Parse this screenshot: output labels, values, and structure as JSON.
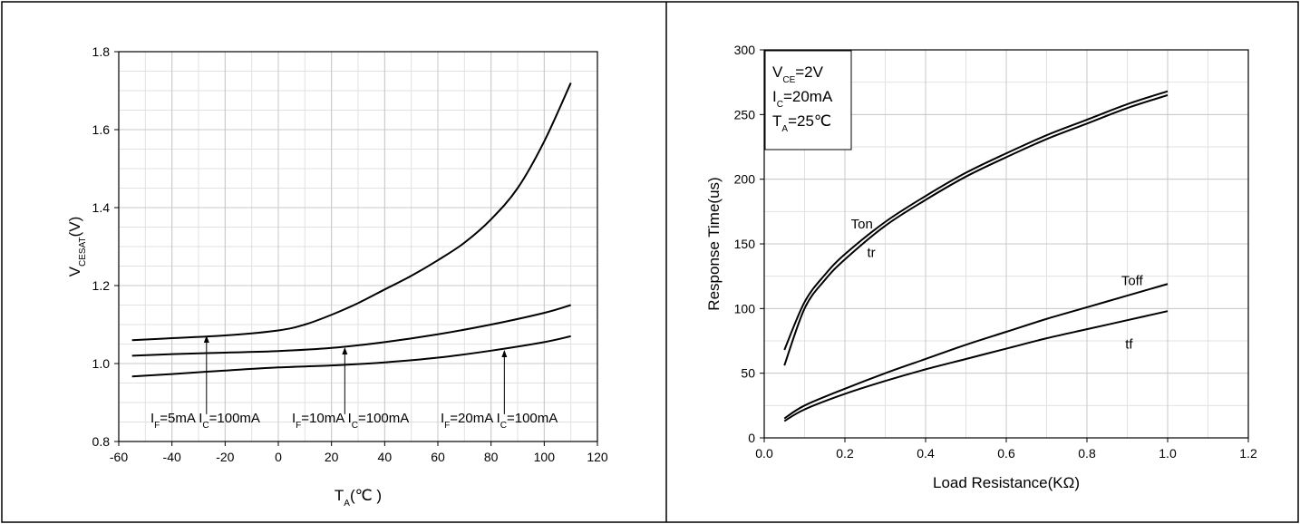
{
  "chart_data": [
    {
      "type": "line",
      "title": "",
      "xlabel": "T",
      "xlabel_sub": "A",
      "xlabel_unit": "(℃ )",
      "ylabel": "V",
      "ylabel_sub": "CESAT",
      "ylabel_unit": "(V)",
      "xlim": [
        -60,
        120
      ],
      "ylim": [
        0.8,
        1.8
      ],
      "xticks": [
        "-60",
        "-40",
        "-20",
        "0",
        "20",
        "40",
        "60",
        "80",
        "100",
        "120"
      ],
      "yticks": [
        "0.8",
        "1.0",
        "1.2",
        "1.4",
        "1.6",
        "1.8"
      ],
      "grid": true,
      "series": [
        {
          "x": [
            -55,
            -40,
            -20,
            0,
            10,
            20,
            30,
            40,
            50,
            60,
            70,
            80,
            90,
            100,
            110
          ],
          "y": [
            1.06,
            1.065,
            1.072,
            1.085,
            1.1,
            1.125,
            1.155,
            1.19,
            1.225,
            1.265,
            1.31,
            1.37,
            1.45,
            1.57,
            1.72
          ]
        },
        {
          "x": [
            -55,
            -40,
            -20,
            0,
            20,
            40,
            60,
            80,
            100,
            110
          ],
          "y": [
            1.02,
            1.024,
            1.028,
            1.032,
            1.04,
            1.055,
            1.075,
            1.1,
            1.13,
            1.15
          ]
        },
        {
          "x": [
            -55,
            -40,
            -20,
            0,
            20,
            40,
            60,
            80,
            100,
            110
          ],
          "y": [
            0.967,
            0.973,
            0.982,
            0.99,
            0.995,
            1.003,
            1.015,
            1.033,
            1.055,
            1.07
          ]
        }
      ],
      "annotations": [
        {
          "text": [
            "I",
            "F",
            "=5mA I",
            "C",
            "=100mA"
          ],
          "arrow_x": -27,
          "arrow_from_y": 0.87,
          "arrow_to_y": 1.072
        },
        {
          "text": [
            "I",
            "F",
            "=10mA I",
            "C",
            "=100mA"
          ],
          "arrow_x": 25,
          "arrow_from_y": 0.87,
          "arrow_to_y": 1.042
        },
        {
          "text": [
            "I",
            "F",
            "=20mA I",
            "C",
            "=100mA"
          ],
          "arrow_x": 85,
          "arrow_from_y": 0.87,
          "arrow_to_y": 1.035
        }
      ]
    },
    {
      "type": "line",
      "title": "",
      "xlabel": "Load Resistance(KΩ)",
      "ylabel": "Response Time(us)",
      "xlim": [
        0.0,
        1.2
      ],
      "ylim": [
        0,
        300
      ],
      "xticks": [
        "0.0",
        "0.2",
        "0.4",
        "0.6",
        "0.8",
        "1.0",
        "1.2"
      ],
      "yticks": [
        "0",
        "50",
        "100",
        "150",
        "200",
        "250",
        "300"
      ],
      "grid": true,
      "conditions": [
        [
          "V",
          "CE",
          "=2V"
        ],
        [
          "I",
          "C",
          "=20mA"
        ],
        [
          "T",
          "A",
          "=25℃"
        ]
      ],
      "series": [
        {
          "name": "Ton",
          "x": [
            0.05,
            0.1,
            0.15,
            0.2,
            0.3,
            0.4,
            0.5,
            0.6,
            0.7,
            0.8,
            0.9,
            1.0
          ],
          "y": [
            68,
            105,
            126,
            142,
            167,
            187,
            205,
            220,
            234,
            246,
            258,
            268
          ]
        },
        {
          "name": "tr",
          "x": [
            0.05,
            0.1,
            0.15,
            0.2,
            0.3,
            0.4,
            0.5,
            0.6,
            0.7,
            0.8,
            0.9,
            1.0
          ],
          "y": [
            56,
            100,
            122,
            138,
            164,
            184,
            202,
            217,
            231,
            243,
            255,
            265
          ]
        },
        {
          "name": "Toff",
          "x": [
            0.05,
            0.1,
            0.2,
            0.3,
            0.4,
            0.5,
            0.6,
            0.7,
            0.8,
            0.9,
            1.0
          ],
          "y": [
            15,
            25,
            38,
            50,
            61,
            72,
            82,
            92,
            101,
            110,
            119
          ]
        },
        {
          "name": "tf",
          "x": [
            0.05,
            0.1,
            0.2,
            0.3,
            0.4,
            0.5,
            0.6,
            0.7,
            0.8,
            0.9,
            1.0
          ],
          "y": [
            13,
            22,
            34,
            44,
            53,
            61,
            69,
            77,
            84,
            91,
            98
          ]
        }
      ],
      "series_labels": [
        {
          "text": "Ton",
          "x": 0.215,
          "y": 162
        },
        {
          "text": "tr",
          "x": 0.255,
          "y": 140
        },
        {
          "text": "Toff",
          "x": 0.885,
          "y": 118
        },
        {
          "text": "tf",
          "x": 0.895,
          "y": 69
        }
      ]
    }
  ]
}
